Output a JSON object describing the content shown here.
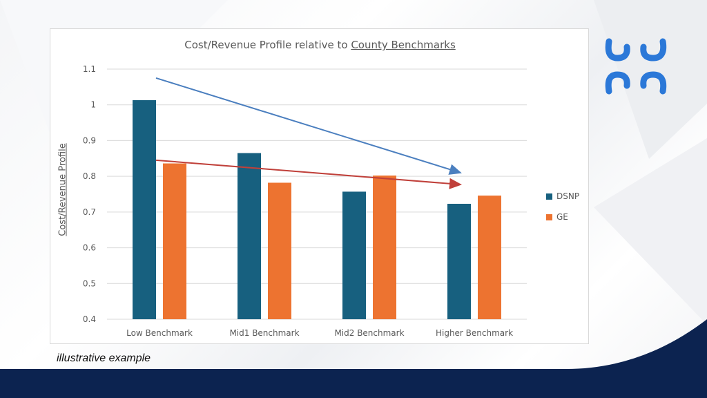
{
  "colors": {
    "dsnp": "#17607f",
    "ge": "#ed7330",
    "trend_blue": "#4b7fbf",
    "trend_red": "#c0403a",
    "footer": "#0c2350",
    "logo": "#2b78d8"
  },
  "logo": {
    "icon": "abstract-brackets-logo-icon"
  },
  "footnote": "illustrative example",
  "chart_data": {
    "type": "bar",
    "title_prefix": "Cost/Revenue Profile relative to ",
    "title_emphasis": "County Benchmarks",
    "ylabel": "Cost/Revenue Profile",
    "xlabel": "",
    "ylim": [
      0.4,
      1.1
    ],
    "yticks": [
      "1.1",
      "1",
      "0.9",
      "0.8",
      "0.7",
      "0.6",
      "0.5",
      "0.4"
    ],
    "ytick_values": [
      1.1,
      1.0,
      0.9,
      0.8,
      0.7,
      0.6,
      0.5,
      0.4
    ],
    "grid": true,
    "legend_position": "right",
    "categories": [
      "Low Benchmark",
      "Mid1 Benchmark",
      "Mid2 Benchmark",
      "Higher Benchmark"
    ],
    "series": [
      {
        "name": "DSNP",
        "values": [
          1.013,
          0.865,
          0.757,
          0.723
        ]
      },
      {
        "name": "GE",
        "values": [
          0.836,
          0.782,
          0.802,
          0.746
        ]
      }
    ],
    "trend_arrows": [
      {
        "series": "DSNP",
        "from": [
          0,
          1.075
        ],
        "to": [
          3,
          0.81
        ]
      },
      {
        "series": "GE",
        "from": [
          0,
          0.845
        ],
        "to": [
          3,
          0.777
        ]
      }
    ]
  }
}
